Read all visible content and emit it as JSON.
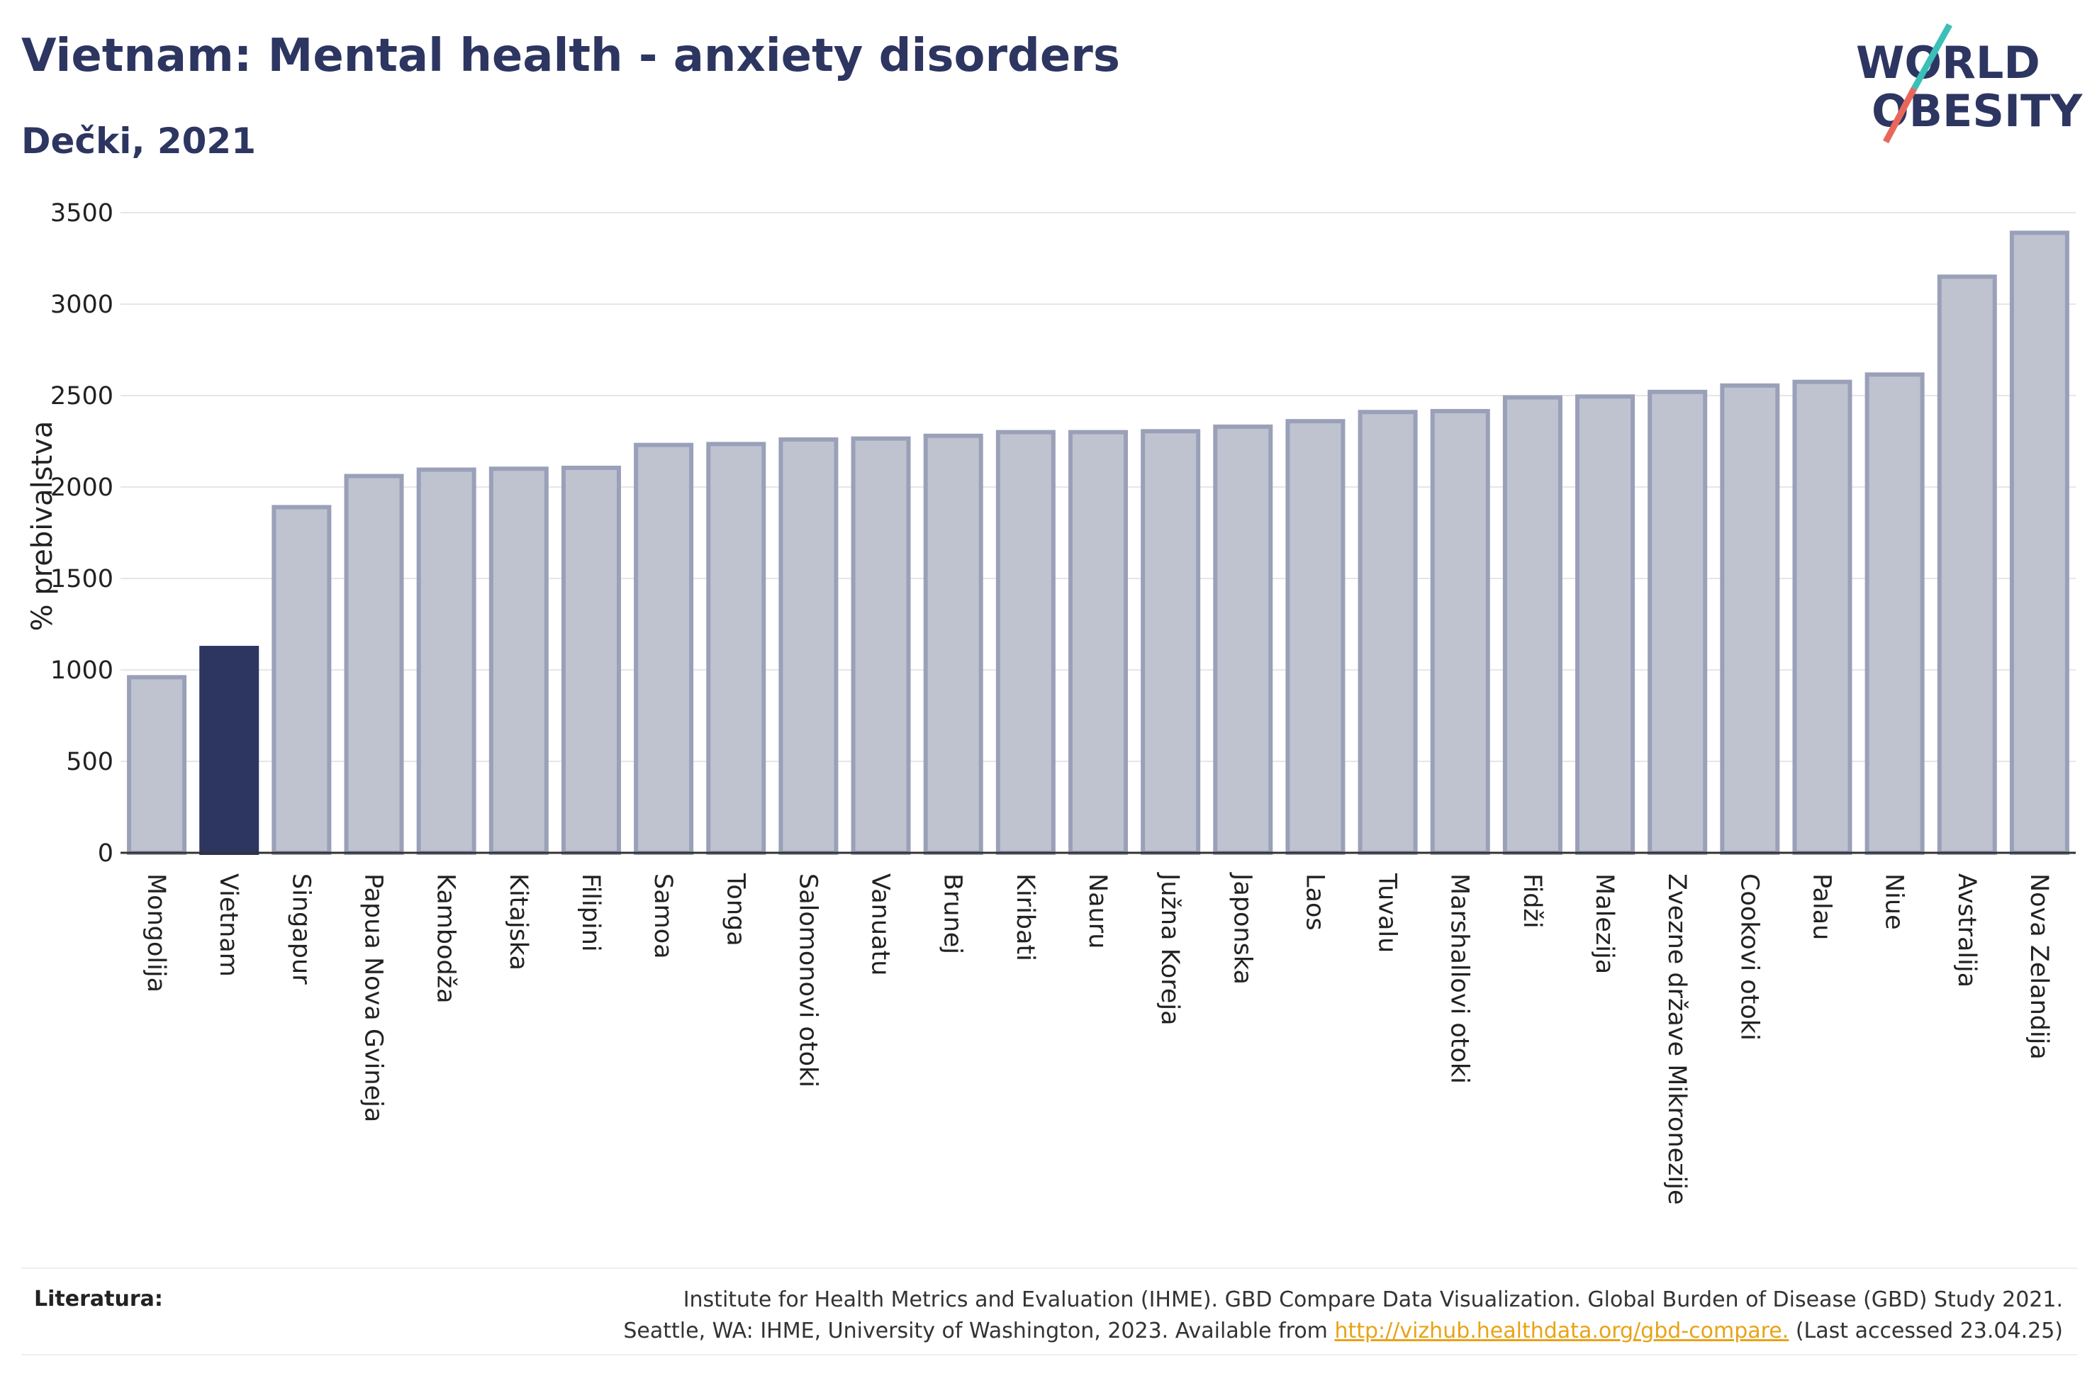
{
  "header": {
    "title": "Vietnam: Mental health - anxiety disorders",
    "subtitle": "Dečki, 2021"
  },
  "logo": {
    "line1": "WORLD",
    "line2": "OBESITY"
  },
  "colors": {
    "highlight": "#2d3561",
    "bar_fill": "#bfc3d0",
    "bar_stroke": "#9aa0b8",
    "grid": "#e6e6e6",
    "logo_teal": "#3bbfb8",
    "logo_red": "#e8675a"
  },
  "chart_data": {
    "type": "bar",
    "ylabel": "% prebivalstva",
    "ylim": [
      0,
      3500
    ],
    "yticks": [
      0,
      500,
      1000,
      1500,
      2000,
      2500,
      3000,
      3500
    ],
    "grid": true,
    "highlight": "Vietnam",
    "categories": [
      "Mongolija",
      "Vietnam",
      "Singapur",
      "Papua Nova Gvineja",
      "Kambodža",
      "Kitajska",
      "Filipini",
      "Samoa",
      "Tonga",
      "Salomonovi otoki",
      "Vanuatu",
      "Brunej",
      "Kiribati",
      "Nauru",
      "Južna Koreja",
      "Japonska",
      "Laos",
      "Tuvalu",
      "Marshallovi otoki",
      "Fidži",
      "Malezija",
      "Zvezne države Mikronezije",
      "Cookovi otoki",
      "Palau",
      "Niue",
      "Avstralija",
      "Nova Zelandija"
    ],
    "values": [
      960,
      1120,
      1890,
      2060,
      2095,
      2100,
      2105,
      2230,
      2235,
      2260,
      2265,
      2280,
      2300,
      2300,
      2305,
      2330,
      2360,
      2410,
      2415,
      2490,
      2495,
      2520,
      2555,
      2575,
      2615,
      3150,
      3390
    ]
  },
  "footer": {
    "ref_label": "Literatura:",
    "line1": "Institute for Health Metrics and Evaluation (IHME). GBD Compare Data Visualization. Global Burden of Disease (GBD) Study 2021.",
    "line2_prefix": "Seattle, WA: IHME, University of Washington, 2023. Available from ",
    "link": "http://vizhub.healthdata.org/gbd-compare.",
    "line2_suffix": " (Last accessed 23.04.25)"
  }
}
